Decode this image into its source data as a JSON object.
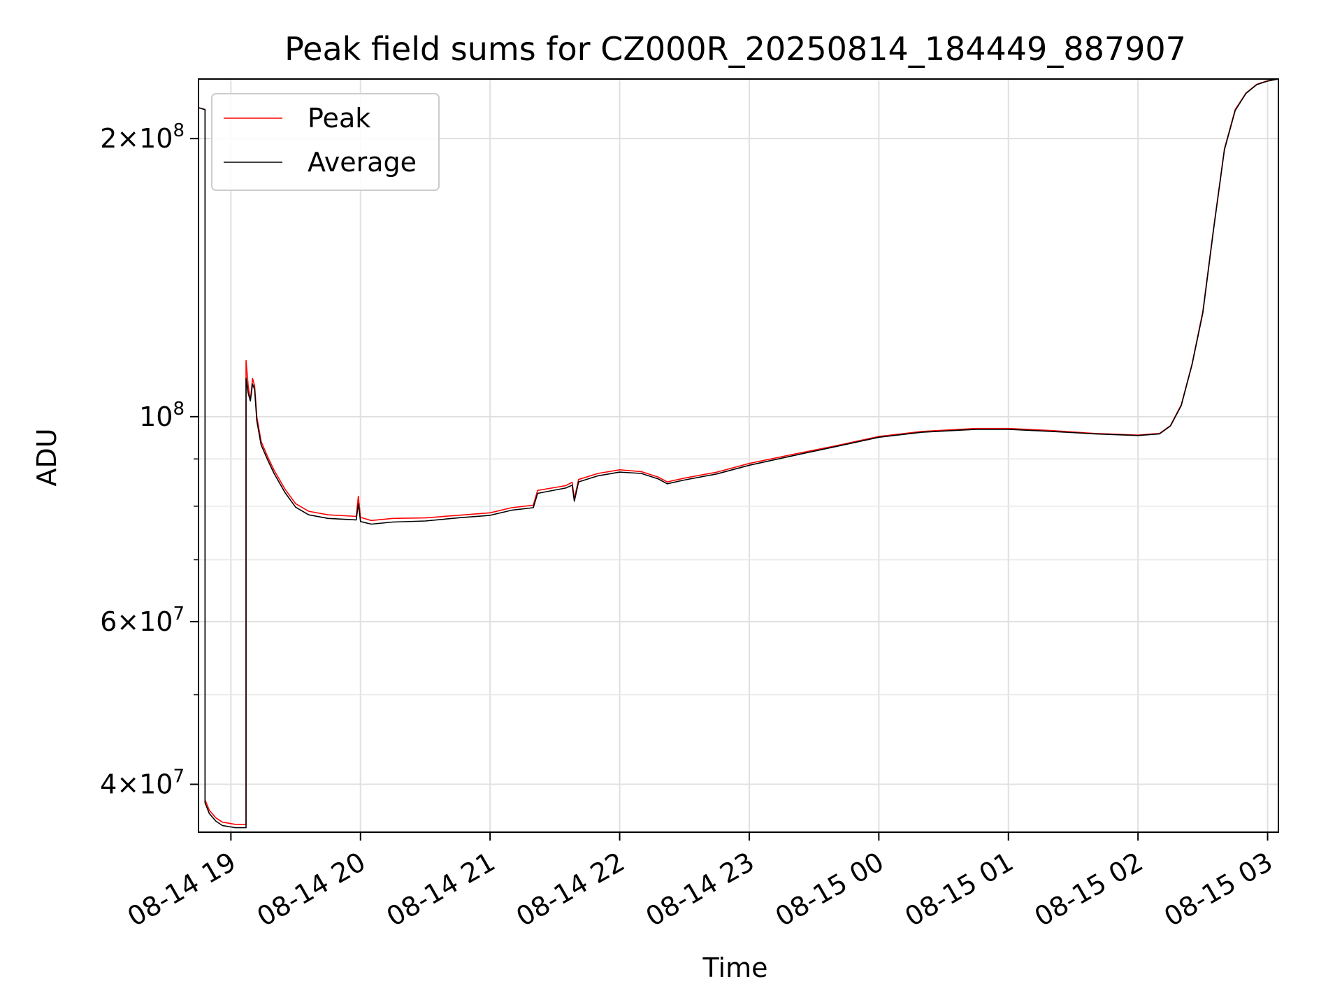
{
  "chart_data": {
    "type": "line",
    "title": "Peak field sums for CZ000R_20250814_184449_887907",
    "xlabel": "Time",
    "ylabel": "ADU",
    "yscale": "log",
    "grid": true,
    "legend_position": "top-left",
    "xlim": [
      "2025-08-14 18:45",
      "2025-08-15 03:05"
    ],
    "ylim": [
      35500000,
      232000000
    ],
    "x_ticks": [
      {
        "value": "2025-08-14 19:00",
        "label": "08-14 19"
      },
      {
        "value": "2025-08-14 20:00",
        "label": "08-14 20"
      },
      {
        "value": "2025-08-14 21:00",
        "label": "08-14 21"
      },
      {
        "value": "2025-08-14 22:00",
        "label": "08-14 22"
      },
      {
        "value": "2025-08-14 23:00",
        "label": "08-14 23"
      },
      {
        "value": "2025-08-15 00:00",
        "label": "08-15 00"
      },
      {
        "value": "2025-08-15 01:00",
        "label": "08-15 01"
      },
      {
        "value": "2025-08-15 02:00",
        "label": "08-15 02"
      },
      {
        "value": "2025-08-15 03:00",
        "label": "08-15 03"
      }
    ],
    "y_ticks": [
      {
        "value": 40000000,
        "mantissa": "4",
        "exponent": "7"
      },
      {
        "value": 60000000,
        "mantissa": "6",
        "exponent": "7"
      },
      {
        "value": 100000000,
        "mantissa": "",
        "exponent": "8"
      },
      {
        "value": 200000000,
        "mantissa": "2",
        "exponent": "8"
      }
    ],
    "y_minor_ticks": [
      50000000,
      70000000,
      80000000,
      90000000
    ],
    "series": [
      {
        "name": "Peak",
        "color": "#ff0000",
        "points": [
          [
            "2025-08-14 18:45",
            216000000
          ],
          [
            "2025-08-14 18:48",
            215000000
          ],
          [
            "2025-08-14 18:48",
            38500000
          ],
          [
            "2025-08-14 18:50",
            37500000
          ],
          [
            "2025-08-14 18:53",
            36800000
          ],
          [
            "2025-08-14 18:56",
            36400000
          ],
          [
            "2025-08-14 18:59",
            36300000
          ],
          [
            "2025-08-14 19:02",
            36200000
          ],
          [
            "2025-08-14 19:07",
            36200000
          ],
          [
            "2025-08-14 19:07",
            115000000
          ],
          [
            "2025-08-14 19:08",
            108000000
          ],
          [
            "2025-08-14 19:09",
            104000000
          ],
          [
            "2025-08-14 19:10",
            110000000
          ],
          [
            "2025-08-14 19:11",
            108000000
          ],
          [
            "2025-08-14 19:12",
            100000000
          ],
          [
            "2025-08-14 19:14",
            94000000
          ],
          [
            "2025-08-14 19:17",
            90500000
          ],
          [
            "2025-08-14 19:20",
            87500000
          ],
          [
            "2025-08-14 19:25",
            83500000
          ],
          [
            "2025-08-14 19:30",
            80500000
          ],
          [
            "2025-08-14 19:36",
            79000000
          ],
          [
            "2025-08-14 19:45",
            78300000
          ],
          [
            "2025-08-14 19:58",
            78000000
          ],
          [
            "2025-08-14 19:59",
            82000000
          ],
          [
            "2025-08-14 20:00",
            77800000
          ],
          [
            "2025-08-14 20:05",
            77200000
          ],
          [
            "2025-08-14 20:15",
            77600000
          ],
          [
            "2025-08-14 20:30",
            77700000
          ],
          [
            "2025-08-14 20:45",
            78200000
          ],
          [
            "2025-08-14 21:00",
            78700000
          ],
          [
            "2025-08-14 21:10",
            79700000
          ],
          [
            "2025-08-14 21:20",
            80200000
          ],
          [
            "2025-08-14 21:22",
            83200000
          ],
          [
            "2025-08-14 21:35",
            84200000
          ],
          [
            "2025-08-14 21:38",
            84900000
          ],
          [
            "2025-08-14 21:39",
            81500000
          ],
          [
            "2025-08-14 21:41",
            85500000
          ],
          [
            "2025-08-14 21:50",
            86800000
          ],
          [
            "2025-08-14 22:00",
            87600000
          ],
          [
            "2025-08-14 22:10",
            87200000
          ],
          [
            "2025-08-14 22:18",
            86000000
          ],
          [
            "2025-08-14 22:22",
            85000000
          ],
          [
            "2025-08-14 22:30",
            85800000
          ],
          [
            "2025-08-14 22:45",
            87100000
          ],
          [
            "2025-08-14 23:00",
            89000000
          ],
          [
            "2025-08-14 23:20",
            91000000
          ],
          [
            "2025-08-14 23:40",
            93000000
          ],
          [
            "2025-08-15 00:00",
            95200000
          ],
          [
            "2025-08-15 00:20",
            96400000
          ],
          [
            "2025-08-15 00:45",
            97100000
          ],
          [
            "2025-08-15 01:00",
            97100000
          ],
          [
            "2025-08-15 01:20",
            96600000
          ],
          [
            "2025-08-15 01:40",
            95900000
          ],
          [
            "2025-08-15 02:00",
            95500000
          ],
          [
            "2025-08-15 02:10",
            95900000
          ],
          [
            "2025-08-15 02:15",
            97800000
          ],
          [
            "2025-08-15 02:20",
            103000000
          ],
          [
            "2025-08-15 02:25",
            114000000
          ],
          [
            "2025-08-15 02:30",
            130000000
          ],
          [
            "2025-08-15 02:35",
            160000000
          ],
          [
            "2025-08-15 02:40",
            195000000
          ],
          [
            "2025-08-15 02:45",
            215000000
          ],
          [
            "2025-08-15 02:50",
            224000000
          ],
          [
            "2025-08-15 02:55",
            229000000
          ],
          [
            "2025-08-15 03:00",
            231000000
          ],
          [
            "2025-08-15 03:05",
            232000000
          ]
        ]
      },
      {
        "name": "Average",
        "color": "#000000",
        "points": [
          [
            "2025-08-14 18:45",
            216000000
          ],
          [
            "2025-08-14 18:48",
            215000000
          ],
          [
            "2025-08-14 18:48",
            38200000
          ],
          [
            "2025-08-14 18:50",
            37200000
          ],
          [
            "2025-08-14 18:53",
            36500000
          ],
          [
            "2025-08-14 18:56",
            36100000
          ],
          [
            "2025-08-14 18:59",
            36000000
          ],
          [
            "2025-08-14 19:02",
            35900000
          ],
          [
            "2025-08-14 19:07",
            35900000
          ],
          [
            "2025-08-14 19:07",
            110000000
          ],
          [
            "2025-08-14 19:08",
            106000000
          ],
          [
            "2025-08-14 19:09",
            104000000
          ],
          [
            "2025-08-14 19:10",
            108500000
          ],
          [
            "2025-08-14 19:11",
            107000000
          ],
          [
            "2025-08-14 19:12",
            99000000
          ],
          [
            "2025-08-14 19:14",
            93200000
          ],
          [
            "2025-08-14 19:17",
            89800000
          ],
          [
            "2025-08-14 19:20",
            86800000
          ],
          [
            "2025-08-14 19:25",
            82800000
          ],
          [
            "2025-08-14 19:30",
            79800000
          ],
          [
            "2025-08-14 19:36",
            78300000
          ],
          [
            "2025-08-14 19:45",
            77600000
          ],
          [
            "2025-08-14 19:58",
            77300000
          ],
          [
            "2025-08-14 19:59",
            80500000
          ],
          [
            "2025-08-14 20:00",
            77000000
          ],
          [
            "2025-08-14 20:05",
            76500000
          ],
          [
            "2025-08-14 20:15",
            76900000
          ],
          [
            "2025-08-14 20:30",
            77100000
          ],
          [
            "2025-08-14 20:45",
            77700000
          ],
          [
            "2025-08-14 21:00",
            78200000
          ],
          [
            "2025-08-14 21:10",
            79200000
          ],
          [
            "2025-08-14 21:20",
            79700000
          ],
          [
            "2025-08-14 21:22",
            82600000
          ],
          [
            "2025-08-14 21:35",
            83700000
          ],
          [
            "2025-08-14 21:38",
            84300000
          ],
          [
            "2025-08-14 21:39",
            81000000
          ],
          [
            "2025-08-14 21:41",
            85000000
          ],
          [
            "2025-08-14 21:50",
            86300000
          ],
          [
            "2025-08-14 22:00",
            87100000
          ],
          [
            "2025-08-14 22:10",
            86800000
          ],
          [
            "2025-08-14 22:18",
            85600000
          ],
          [
            "2025-08-14 22:22",
            84600000
          ],
          [
            "2025-08-14 22:30",
            85400000
          ],
          [
            "2025-08-14 22:45",
            86700000
          ],
          [
            "2025-08-14 23:00",
            88600000
          ],
          [
            "2025-08-14 23:20",
            90700000
          ],
          [
            "2025-08-14 23:40",
            92800000
          ],
          [
            "2025-08-15 00:00",
            95000000
          ],
          [
            "2025-08-15 00:20",
            96200000
          ],
          [
            "2025-08-15 00:45",
            96900000
          ],
          [
            "2025-08-15 01:00",
            96900000
          ],
          [
            "2025-08-15 01:20",
            96400000
          ],
          [
            "2025-08-15 01:40",
            95800000
          ],
          [
            "2025-08-15 02:00",
            95400000
          ],
          [
            "2025-08-15 02:10",
            95800000
          ],
          [
            "2025-08-15 02:15",
            97700000
          ],
          [
            "2025-08-15 02:20",
            102800000
          ],
          [
            "2025-08-15 02:25",
            113800000
          ],
          [
            "2025-08-15 02:30",
            129500000
          ],
          [
            "2025-08-15 02:35",
            159500000
          ],
          [
            "2025-08-15 02:40",
            194500000
          ],
          [
            "2025-08-15 02:45",
            214500000
          ],
          [
            "2025-08-15 02:50",
            223800000
          ],
          [
            "2025-08-15 02:55",
            228800000
          ],
          [
            "2025-08-15 03:00",
            230800000
          ],
          [
            "2025-08-15 03:05",
            232000000
          ]
        ]
      }
    ]
  }
}
